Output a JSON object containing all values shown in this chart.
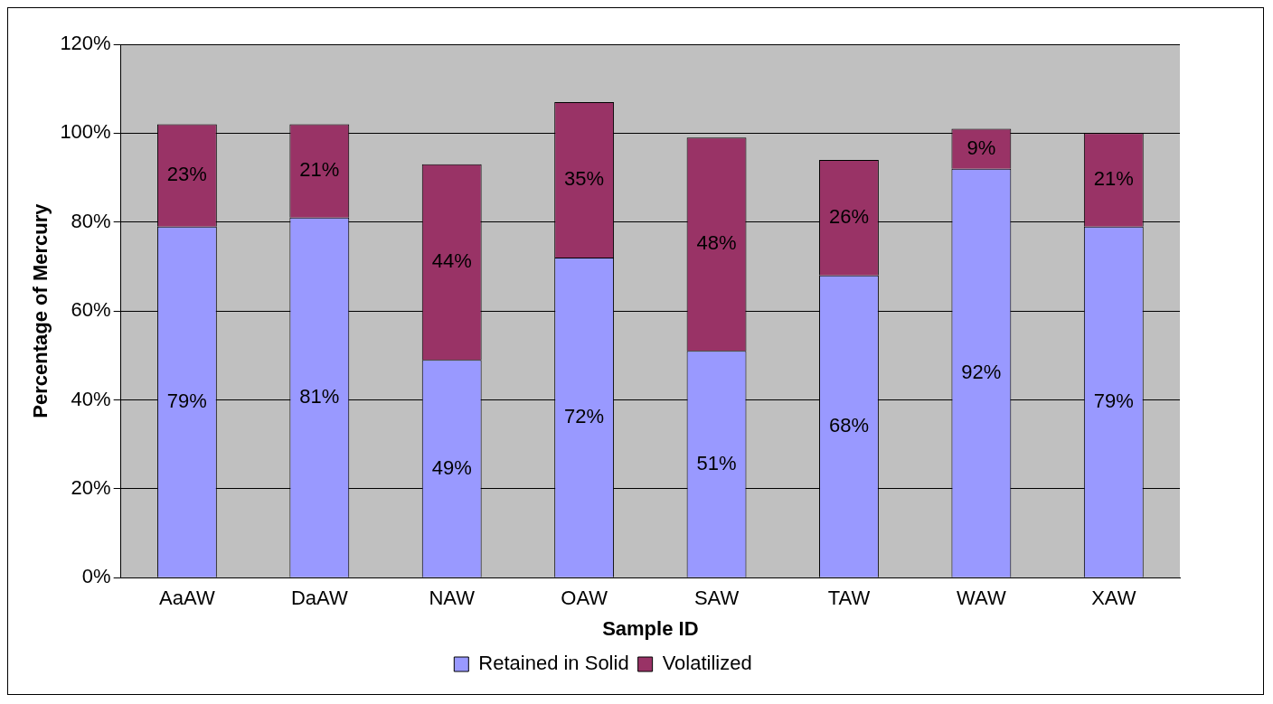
{
  "chart_data": {
    "type": "bar",
    "stacked": true,
    "xlabel": "Sample ID",
    "ylabel": "Percentage of Mercury",
    "categories": [
      "AaAW",
      "DaAW",
      "NAW",
      "OAW",
      "SAW",
      "TAW",
      "WAW",
      "XAW"
    ],
    "series": [
      {
        "name": "Retained in Solid",
        "color": "#9999ff",
        "values": [
          79,
          81,
          49,
          72,
          51,
          68,
          92,
          79
        ],
        "value_labels": [
          "79%",
          "81%",
          "49%",
          "72%",
          "51%",
          "68%",
          "92%",
          "79%"
        ]
      },
      {
        "name": "Volatilized",
        "color": "#993366",
        "values": [
          23,
          21,
          44,
          35,
          48,
          26,
          9,
          21
        ],
        "value_labels": [
          "23%",
          "21%",
          "44%",
          "35%",
          "48%",
          "26%",
          "9%",
          "21%"
        ]
      }
    ],
    "ylim": [
      0,
      120
    ],
    "yticks": [
      {
        "value": 0,
        "label": "0%"
      },
      {
        "value": 20,
        "label": "20%"
      },
      {
        "value": 40,
        "label": "40%"
      },
      {
        "value": 60,
        "label": "60%"
      },
      {
        "value": 80,
        "label": "80%"
      },
      {
        "value": 100,
        "label": "100%"
      },
      {
        "value": 120,
        "label": "120%"
      }
    ],
    "grid": "y",
    "legend": "bottom"
  }
}
